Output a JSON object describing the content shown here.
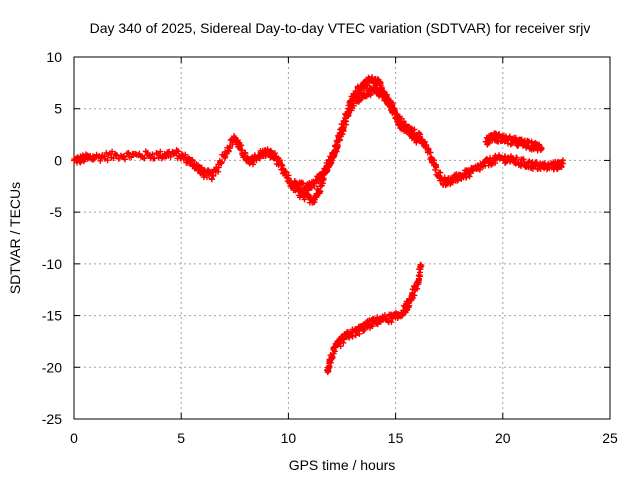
{
  "chart_data": {
    "type": "scatter",
    "title": "Day 340 of 2025, Sidereal Day-to-day VTEC variation (SDTVAR) for receiver srjv",
    "xlabel": "GPS time / hours",
    "ylabel": "SDTVAR / TECUs",
    "xlim": [
      0,
      25
    ],
    "ylim": [
      -25,
      10
    ],
    "xticks": [
      0,
      5,
      10,
      15,
      20,
      25
    ],
    "yticks": [
      -25,
      -20,
      -15,
      -10,
      -5,
      0,
      5,
      10
    ],
    "grid": true,
    "marker": "plus",
    "series_color": "#ff0000",
    "series": [
      {
        "name": "main",
        "points": [
          [
            0,
            0
          ],
          [
            0.5,
            0.2
          ],
          [
            1,
            0.3
          ],
          [
            2,
            0.5
          ],
          [
            3,
            0.5
          ],
          [
            4,
            0.5
          ],
          [
            4.7,
            0.7
          ],
          [
            5.2,
            0.2
          ],
          [
            5.7,
            -0.5
          ],
          [
            6,
            -1.2
          ],
          [
            6.5,
            -1.5
          ],
          [
            7,
            0.5
          ],
          [
            7.5,
            2.2
          ],
          [
            7.8,
            1.0
          ],
          [
            8.2,
            -0.3
          ],
          [
            8.6,
            0.5
          ],
          [
            9,
            0.8
          ],
          [
            9.4,
            0.3
          ],
          [
            9.8,
            -1.2
          ],
          [
            10.2,
            -2.5
          ],
          [
            10.7,
            -3.5
          ],
          [
            11.2,
            -3.8
          ],
          [
            11.5,
            -2.5
          ],
          [
            11.8,
            -0.5
          ],
          [
            12.1,
            0.5
          ],
          [
            12.4,
            2.5
          ],
          [
            12.7,
            4.5
          ],
          [
            13.0,
            6.0
          ],
          [
            13.4,
            7.2
          ],
          [
            13.8,
            7.8
          ],
          [
            14.2,
            7.5
          ],
          [
            14.5,
            6.5
          ],
          [
            15,
            4.5
          ],
          [
            15.5,
            3.0
          ],
          [
            16,
            2.5
          ],
          [
            16.4,
            1.5
          ],
          [
            16.8,
            -0.5
          ],
          [
            17.2,
            -2.0
          ],
          [
            17.6,
            -2.0
          ],
          [
            18,
            -1.5
          ],
          [
            18.5,
            -1.2
          ],
          [
            19,
            -0.5
          ],
          [
            19.5,
            0
          ],
          [
            20,
            0.2
          ],
          [
            20.5,
            0
          ],
          [
            21,
            -0.3
          ],
          [
            21.5,
            -0.5
          ],
          [
            22,
            -0.6
          ],
          [
            22.5,
            -0.5
          ],
          [
            22.8,
            -0.3
          ]
        ]
      },
      {
        "name": "main-b",
        "points": [
          [
            10.3,
            -2.0
          ],
          [
            10.8,
            -2.8
          ],
          [
            11.3,
            -2.0
          ],
          [
            11.7,
            -1.0
          ],
          [
            12.0,
            0.0
          ],
          [
            12.3,
            1.5
          ],
          [
            12.6,
            3.5
          ],
          [
            13.0,
            5.5
          ],
          [
            13.5,
            6.5
          ],
          [
            14.0,
            6.8
          ],
          [
            14.4,
            6.5
          ],
          [
            14.8,
            5.0
          ],
          [
            15.2,
            3.5
          ],
          [
            15.6,
            3.0
          ],
          [
            16.0,
            2.0
          ]
        ]
      },
      {
        "name": "upper-arc",
        "points": [
          [
            19.2,
            1.8
          ],
          [
            19.5,
            2.3
          ],
          [
            19.8,
            2.2
          ],
          [
            20.2,
            2.0
          ],
          [
            20.6,
            1.8
          ],
          [
            21.0,
            1.6
          ],
          [
            21.4,
            1.4
          ],
          [
            21.8,
            1.2
          ]
        ]
      },
      {
        "name": "lower-arc",
        "points": [
          [
            11.8,
            -20.3
          ],
          [
            12.0,
            -19.0
          ],
          [
            12.3,
            -17.8
          ],
          [
            12.7,
            -17.0
          ],
          [
            13.2,
            -16.5
          ],
          [
            13.6,
            -16.0
          ],
          [
            14.0,
            -15.6
          ],
          [
            14.5,
            -15.3
          ],
          [
            15.0,
            -15.2
          ],
          [
            15.4,
            -14.5
          ],
          [
            15.7,
            -13.5
          ],
          [
            16.0,
            -12.0
          ],
          [
            16.2,
            -10.2
          ]
        ]
      }
    ]
  }
}
